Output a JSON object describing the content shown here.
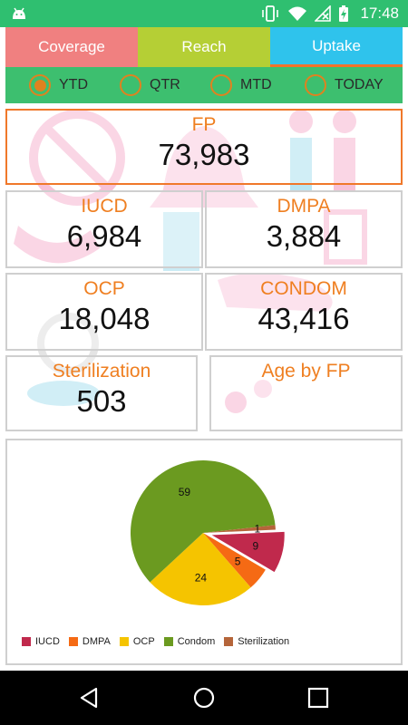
{
  "status_bar": {
    "time": "17:48",
    "icons": [
      "android-icon",
      "vibrate-icon",
      "wifi-icon",
      "no-sim-icon",
      "battery-charging-icon"
    ]
  },
  "tabs": [
    {
      "label": "Coverage",
      "color": "#f08080"
    },
    {
      "label": "Reach",
      "color": "#b5cf35"
    },
    {
      "label": "Uptake",
      "color": "#2fc3ec",
      "selected": true
    }
  ],
  "period": {
    "options": [
      "YTD",
      "QTR",
      "MTD",
      "TODAY"
    ],
    "selected": "YTD"
  },
  "cards": {
    "fp": {
      "label": "FP",
      "value": "73,983"
    },
    "iucd": {
      "label": "IUCD",
      "value": "6,984"
    },
    "dmpa": {
      "label": "DMPA",
      "value": "3,884"
    },
    "ocp": {
      "label": "OCP",
      "value": "18,048"
    },
    "condom": {
      "label": "CONDOM",
      "value": "43,416"
    },
    "sterilization": {
      "label": "Sterilization",
      "value": "503"
    },
    "age_by_fp": {
      "label": "Age by FP"
    }
  },
  "chart_data": {
    "type": "pie",
    "slices": [
      {
        "name": "IUCD",
        "value": 9,
        "color": "#c0294c",
        "exploded": true
      },
      {
        "name": "DMPA",
        "value": 5,
        "color": "#f56a14"
      },
      {
        "name": "OCP",
        "value": 24,
        "color": "#f5c400"
      },
      {
        "name": "Condom",
        "value": 59,
        "color": "#6b9a20"
      },
      {
        "name": "Sterilization",
        "value": 1,
        "color": "#b5653a"
      }
    ],
    "legend": [
      "IUCD",
      "DMPA",
      "OCP",
      "Condom",
      "Sterilization"
    ],
    "legend_position": "bottom-left"
  },
  "colors": {
    "accent_orange": "#ef7f21",
    "status_green": "#2fbf70",
    "period_green": "#3dbf6f"
  }
}
